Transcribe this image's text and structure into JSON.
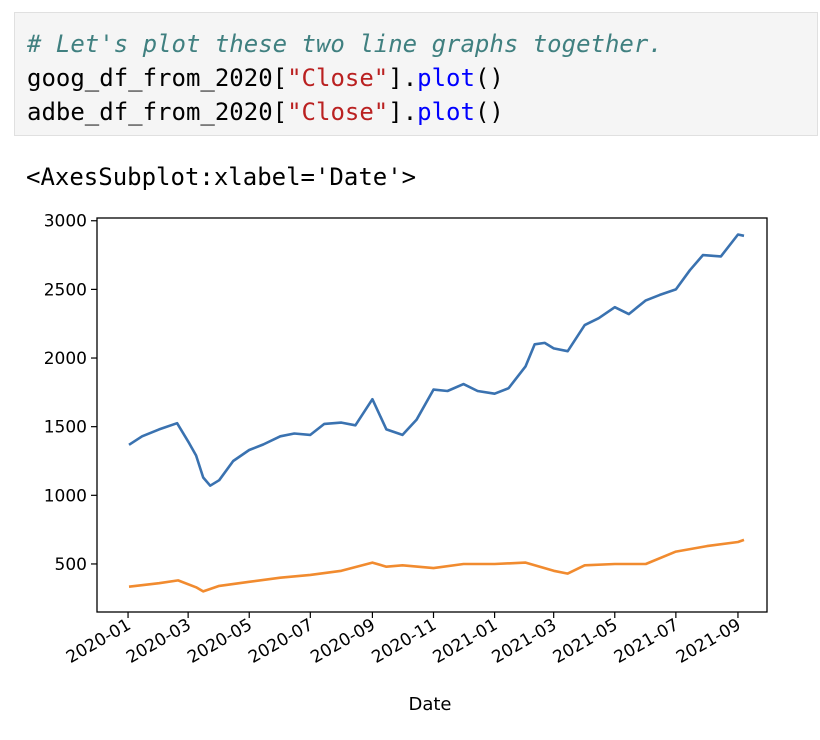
{
  "cell": {
    "line1_comment": "# Let's plot these two line graphs together.",
    "line2": {
      "var": "goog_df_from_2020",
      "open": "[",
      "key": "\"Close\"",
      "close": "].",
      "method": "plot",
      "parens": "()"
    },
    "line3": {
      "var": "adbe_df_from_2020",
      "open": "[",
      "key": "\"Close\"",
      "close": "].",
      "method": "plot",
      "parens": "()"
    }
  },
  "output": {
    "repr": "<AxesSubplot:xlabel='Date'>"
  },
  "colors": {
    "goog": "#3a72b0",
    "adbe": "#f18b2f",
    "comment": "#408080",
    "string": "#ba2121",
    "method": "#0000ff"
  },
  "chart_data": {
    "type": "line",
    "title": "",
    "xlabel": "Date",
    "ylabel": "",
    "xlim": [
      "2019-12-01",
      "2021-09-30"
    ],
    "ylim": [
      150,
      3020
    ],
    "yticks": [
      500,
      1000,
      1500,
      2000,
      2500,
      3000
    ],
    "ytick_labels": [
      "500",
      "1000",
      "1500",
      "2000",
      "2500",
      "3000"
    ],
    "xticks": [
      "2020-01",
      "2020-03",
      "2020-05",
      "2020-07",
      "2020-09",
      "2020-11",
      "2021-01",
      "2021-03",
      "2021-05",
      "2021-07",
      "2021-09"
    ],
    "grid": false,
    "legend": false,
    "series": [
      {
        "color": "#3a72b0",
        "x": [
          "2020-01-02",
          "2020-01-15",
          "2020-02-01",
          "2020-02-19",
          "2020-03-02",
          "2020-03-09",
          "2020-03-16",
          "2020-03-23",
          "2020-04-01",
          "2020-04-15",
          "2020-05-01",
          "2020-05-15",
          "2020-06-01",
          "2020-06-15",
          "2020-07-01",
          "2020-07-15",
          "2020-08-01",
          "2020-08-15",
          "2020-09-01",
          "2020-09-15",
          "2020-10-01",
          "2020-10-15",
          "2020-11-01",
          "2020-11-15",
          "2020-12-01",
          "2020-12-15",
          "2021-01-01",
          "2021-01-15",
          "2021-02-01",
          "2021-02-10",
          "2021-02-20",
          "2021-03-01",
          "2021-03-15",
          "2021-04-01",
          "2021-04-15",
          "2021-05-01",
          "2021-05-15",
          "2021-06-01",
          "2021-06-15",
          "2021-07-01",
          "2021-07-15",
          "2021-07-28",
          "2021-08-15",
          "2021-09-01",
          "2021-09-07"
        ],
        "values": [
          1368,
          1430,
          1480,
          1525,
          1380,
          1290,
          1130,
          1070,
          1110,
          1250,
          1330,
          1370,
          1430,
          1450,
          1440,
          1520,
          1530,
          1510,
          1700,
          1480,
          1440,
          1550,
          1770,
          1760,
          1810,
          1760,
          1740,
          1780,
          1940,
          2100,
          2110,
          2070,
          2050,
          2240,
          2290,
          2370,
          2320,
          2420,
          2460,
          2500,
          2640,
          2750,
          2740,
          2900,
          2890
        ]
      },
      {
        "color": "#f18b2f",
        "x": [
          "2020-01-02",
          "2020-02-01",
          "2020-02-20",
          "2020-03-09",
          "2020-03-16",
          "2020-04-01",
          "2020-05-01",
          "2020-06-01",
          "2020-07-01",
          "2020-08-01",
          "2020-09-01",
          "2020-09-15",
          "2020-10-01",
          "2020-11-01",
          "2020-12-01",
          "2021-01-01",
          "2021-02-01",
          "2021-03-01",
          "2021-03-15",
          "2021-04-01",
          "2021-05-01",
          "2021-06-01",
          "2021-07-01",
          "2021-08-01",
          "2021-09-01",
          "2021-09-07"
        ],
        "values": [
          334,
          360,
          380,
          330,
          300,
          340,
          370,
          400,
          420,
          450,
          510,
          480,
          490,
          470,
          500,
          500,
          510,
          450,
          430,
          490,
          500,
          500,
          590,
          630,
          660,
          675
        ]
      }
    ]
  }
}
